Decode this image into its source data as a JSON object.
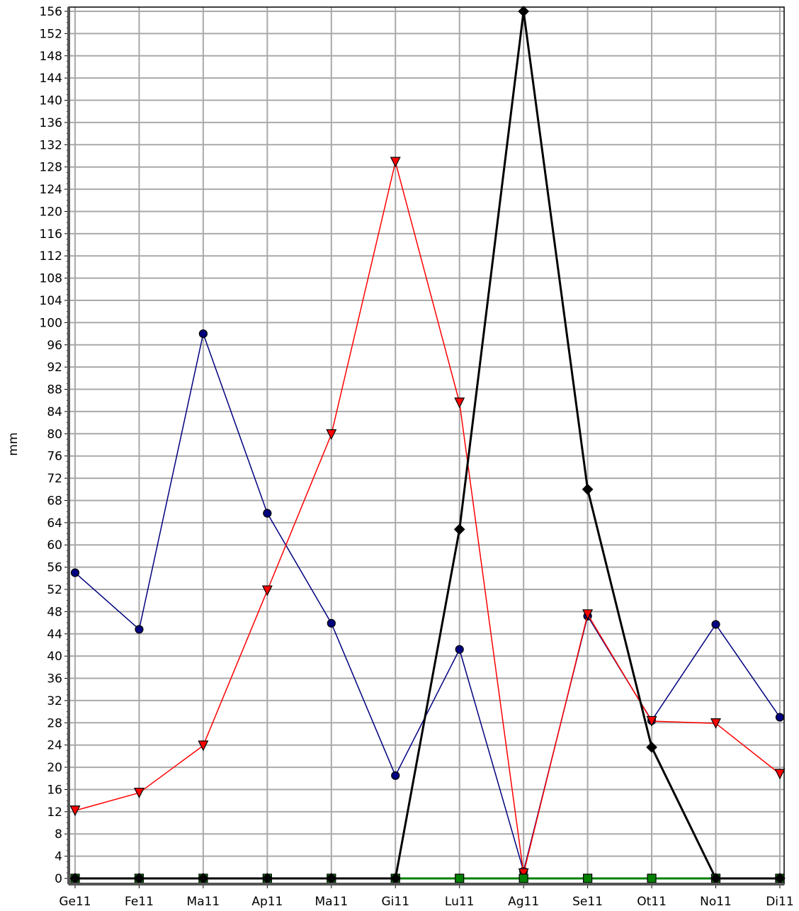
{
  "chart_data": {
    "type": "line",
    "title": "",
    "xlabel": "",
    "ylabel": "mm",
    "categories": [
      "Ge11",
      "Fe11",
      "Ma11",
      "Ap11",
      "Ma11",
      "Gi11",
      "Lu11",
      "Ag11",
      "Se11",
      "Ot11",
      "No11",
      "Di11"
    ],
    "ylim": [
      0,
      156
    ],
    "ytick_step": 4,
    "grid": true,
    "legend": "none",
    "series": [
      {
        "color": "#00007f",
        "marker": "circle",
        "line_width": 1.5,
        "values": [
          55,
          44.8,
          98,
          65.7,
          45.9,
          18.5,
          41.2,
          1.3,
          47.2,
          28.4,
          45.7,
          29
        ]
      },
      {
        "color": "#ff0000",
        "marker": "triangle-down",
        "line_width": 1.5,
        "values": [
          12.2,
          15.4,
          23.9,
          51.8,
          79.9,
          128.9,
          85.6,
          0.9,
          47.5,
          28.3,
          27.9,
          18.8
        ]
      },
      {
        "color": "#008000",
        "marker": "square",
        "line_width": 3,
        "values": [
          0,
          0,
          0,
          0,
          0,
          0,
          0,
          0,
          0,
          0,
          0,
          0
        ]
      },
      {
        "color": "#000000",
        "marker": "diamond",
        "line_width": 3,
        "values": [
          0,
          0,
          0,
          0,
          0,
          0,
          62.8,
          156,
          70,
          23.6,
          0,
          0
        ]
      }
    ]
  }
}
